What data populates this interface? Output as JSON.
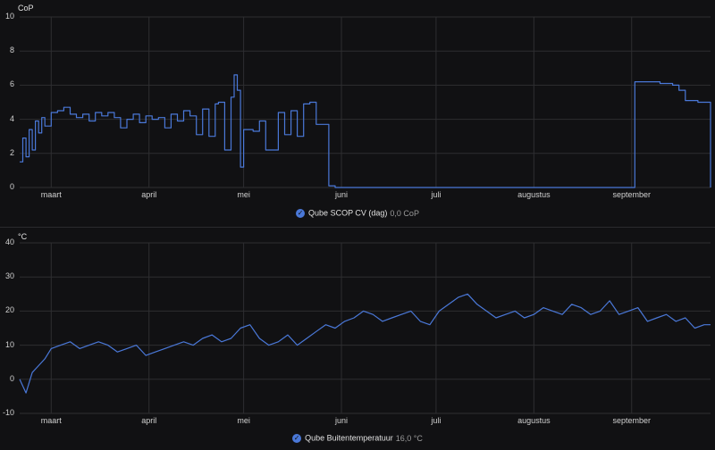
{
  "theme": {
    "background": "#111113",
    "grid": "#2e2e31",
    "line": "#4a78d8"
  },
  "charts": [
    {
      "unit": "CoP",
      "legend_name": "Qube SCOP CV (dag)",
      "legend_value": "0,0 CoP",
      "yticks": [
        "0",
        "2",
        "4",
        "6",
        "8",
        "10"
      ],
      "xticks": [
        "maart",
        "april",
        "mei",
        "juni",
        "juli",
        "augustus",
        "september"
      ]
    },
    {
      "unit": "°C",
      "legend_name": "Qube Buitentemperatuur",
      "legend_value": "16,0 °C",
      "yticks": [
        "-10",
        "0",
        "10",
        "20",
        "30",
        "40"
      ],
      "xticks": [
        "maart",
        "april",
        "mei",
        "juni",
        "juli",
        "augustus",
        "september"
      ]
    }
  ],
  "chart_data": [
    {
      "type": "line",
      "title": "",
      "ylabel": "CoP",
      "ylim": [
        0,
        10
      ],
      "x_axis": "date",
      "xlim": [
        "2024-02-20",
        "2024-09-26"
      ],
      "grid": true,
      "legend": "bottom-center",
      "series": [
        {
          "name": "Qube SCOP CV (dag)",
          "x": [
            "2024-02-20",
            "2024-02-21",
            "2024-02-22",
            "2024-02-23",
            "2024-02-24",
            "2024-02-25",
            "2024-02-26",
            "2024-02-27",
            "2024-02-28",
            "2024-03-01",
            "2024-03-03",
            "2024-03-05",
            "2024-03-07",
            "2024-03-09",
            "2024-03-11",
            "2024-03-13",
            "2024-03-15",
            "2024-03-17",
            "2024-03-19",
            "2024-03-21",
            "2024-03-23",
            "2024-03-25",
            "2024-03-27",
            "2024-03-29",
            "2024-03-31",
            "2024-04-02",
            "2024-04-04",
            "2024-04-06",
            "2024-04-08",
            "2024-04-10",
            "2024-04-12",
            "2024-04-14",
            "2024-04-16",
            "2024-04-18",
            "2024-04-20",
            "2024-04-22",
            "2024-04-23",
            "2024-04-25",
            "2024-04-27",
            "2024-04-28",
            "2024-04-29",
            "2024-04-30",
            "2024-05-01",
            "2024-05-02",
            "2024-05-03",
            "2024-05-04",
            "2024-05-06",
            "2024-05-08",
            "2024-05-10",
            "2024-05-12",
            "2024-05-14",
            "2024-05-16",
            "2024-05-18",
            "2024-05-20",
            "2024-05-22",
            "2024-05-24",
            "2024-05-26",
            "2024-05-28",
            "2024-05-30",
            "2024-06-05",
            "2024-06-15",
            "2024-06-25",
            "2024-07-05",
            "2024-07-15",
            "2024-07-25",
            "2024-08-05",
            "2024-08-15",
            "2024-08-25",
            "2024-09-01",
            "2024-09-02",
            "2024-09-10",
            "2024-09-14",
            "2024-09-16",
            "2024-09-18",
            "2024-09-22",
            "2024-09-26"
          ],
          "values": [
            1.5,
            2.9,
            1.8,
            3.4,
            2.2,
            3.9,
            3.2,
            4.1,
            3.6,
            4.4,
            4.5,
            4.7,
            4.3,
            4.1,
            4.3,
            3.9,
            4.4,
            4.2,
            4.4,
            4.1,
            3.5,
            4.0,
            4.3,
            3.8,
            4.2,
            4.0,
            4.1,
            3.5,
            4.3,
            3.9,
            4.5,
            4.2,
            3.1,
            4.6,
            3.0,
            4.9,
            5.0,
            2.2,
            5.3,
            6.6,
            5.7,
            1.2,
            3.4,
            3.4,
            3.4,
            3.3,
            3.9,
            2.2,
            2.2,
            4.4,
            3.1,
            4.5,
            3.0,
            4.9,
            5.0,
            3.7,
            3.7,
            0.1,
            0.0,
            0.0,
            0.0,
            0.0,
            0.0,
            0.0,
            0.0,
            0.0,
            0.0,
            0.0,
            0.0,
            6.2,
            6.1,
            6.0,
            5.7,
            5.1,
            5.0,
            0.0
          ]
        }
      ]
    },
    {
      "type": "line",
      "title": "",
      "ylabel": "°C",
      "ylim": [
        -10,
        40
      ],
      "x_axis": "date",
      "xlim": [
        "2024-02-20",
        "2024-09-26"
      ],
      "grid": true,
      "legend": "bottom-center",
      "series": [
        {
          "name": "Qube Buitentemperatuur",
          "x": [
            "2024-02-20",
            "2024-02-22",
            "2024-02-24",
            "2024-02-26",
            "2024-02-28",
            "2024-03-01",
            "2024-03-04",
            "2024-03-07",
            "2024-03-10",
            "2024-03-13",
            "2024-03-16",
            "2024-03-19",
            "2024-03-22",
            "2024-03-25",
            "2024-03-28",
            "2024-03-31",
            "2024-04-03",
            "2024-04-06",
            "2024-04-09",
            "2024-04-12",
            "2024-04-15",
            "2024-04-18",
            "2024-04-21",
            "2024-04-24",
            "2024-04-27",
            "2024-04-30",
            "2024-05-03",
            "2024-05-06",
            "2024-05-09",
            "2024-05-12",
            "2024-05-15",
            "2024-05-18",
            "2024-05-21",
            "2024-05-24",
            "2024-05-27",
            "2024-05-30",
            "2024-06-02",
            "2024-06-05",
            "2024-06-08",
            "2024-06-11",
            "2024-06-14",
            "2024-06-17",
            "2024-06-20",
            "2024-06-23",
            "2024-06-26",
            "2024-06-29",
            "2024-07-02",
            "2024-07-05",
            "2024-07-08",
            "2024-07-11",
            "2024-07-14",
            "2024-07-17",
            "2024-07-20",
            "2024-07-23",
            "2024-07-26",
            "2024-07-29",
            "2024-08-01",
            "2024-08-04",
            "2024-08-07",
            "2024-08-10",
            "2024-08-13",
            "2024-08-16",
            "2024-08-19",
            "2024-08-22",
            "2024-08-25",
            "2024-08-28",
            "2024-08-31",
            "2024-09-03",
            "2024-09-06",
            "2024-09-09",
            "2024-09-12",
            "2024-09-15",
            "2024-09-18",
            "2024-09-21",
            "2024-09-24",
            "2024-09-26"
          ],
          "values": [
            0,
            -4,
            2,
            4,
            6,
            9,
            10,
            11,
            9,
            10,
            11,
            10,
            8,
            9,
            10,
            7,
            8,
            9,
            10,
            11,
            10,
            12,
            13,
            11,
            12,
            15,
            16,
            12,
            10,
            11,
            13,
            10,
            12,
            14,
            16,
            15,
            17,
            18,
            20,
            19,
            17,
            18,
            19,
            20,
            17,
            16,
            20,
            22,
            24,
            25,
            22,
            20,
            18,
            19,
            20,
            18,
            19,
            21,
            20,
            19,
            22,
            21,
            19,
            20,
            23,
            19,
            20,
            21,
            17,
            18,
            19,
            17,
            18,
            15,
            16,
            16
          ]
        }
      ]
    }
  ]
}
